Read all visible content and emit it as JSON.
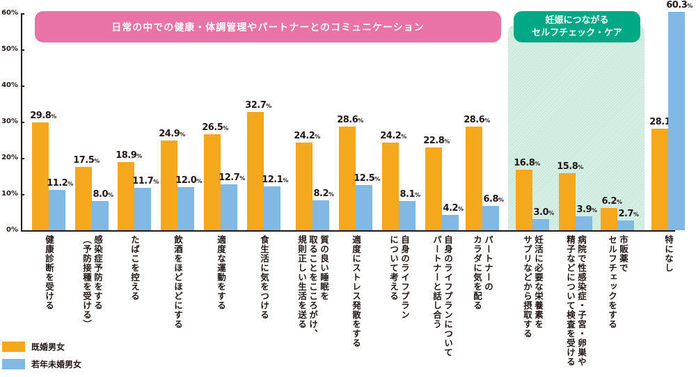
{
  "chart_data": {
    "type": "bar",
    "title": "",
    "xlabel": "",
    "ylabel": "",
    "ylim": [
      0,
      60
    ],
    "yticks": [
      "0%",
      "10%",
      "20%",
      "30%",
      "40%",
      "50%",
      "60%"
    ],
    "grid": false,
    "legend_position": "bottom-left",
    "categories": [
      "健康診断を受ける",
      "感染症予防をする（予防接種を受ける）",
      "たばこを控える",
      "飲酒をほどほどにする",
      "適度な運動をする",
      "食生活に気をつける",
      "質の良い睡眠を取ることをこころがけ、規則正しい生活を送る",
      "適度にストレス発散をする",
      "自身のライフプランについて考える",
      "自身のライフプランについてパートナーと話し合う",
      "パートナーのカラダに気を配る",
      "妊活に必要な栄養素をサプリなどから摂取する",
      "病院で性感染症・子宮・卵巣や精子などについて検査を受ける",
      "市販薬でセルフチェックをする",
      "特になし"
    ],
    "series": [
      {
        "name": "既婚男女",
        "color": "#f5a81c",
        "values": [
          29.8,
          17.5,
          18.9,
          24.9,
          26.5,
          32.7,
          24.2,
          28.6,
          24.2,
          22.8,
          28.6,
          16.8,
          15.8,
          6.2,
          28.1
        ]
      },
      {
        "name": "若年未婚男女",
        "color": "#82b8e4",
        "values": [
          11.2,
          8.0,
          11.7,
          12.0,
          12.7,
          12.1,
          8.2,
          12.5,
          8.1,
          4.2,
          6.8,
          3.0,
          3.9,
          2.7,
          60.3
        ]
      }
    ],
    "annotations": [
      {
        "text": "日常の中での健康・体調管理やパートナーとのコミュニケーション",
        "spans_categories": [
          0,
          10
        ],
        "color": "#e973a7"
      },
      {
        "text": "妊娠につながるセルフチェック・ケア",
        "spans_categories": [
          11,
          13
        ],
        "color": "#00a886"
      }
    ]
  },
  "bands": {
    "daily": "日常の中での健康・体調管理やパートナーとのコミュニケーション",
    "pregnancy_line1": "妊娠につながる",
    "pregnancy_line2": "セルフチェック・ケア"
  },
  "labels": [
    [
      "健康診断を受ける"
    ],
    [
      "感染症予防をする",
      "（予防接種を受ける）"
    ],
    [
      "たばこを控える"
    ],
    [
      "飲酒をほどほどにする"
    ],
    [
      "適度な運動をする"
    ],
    [
      "食生活に気をつける"
    ],
    [
      "質の良い睡眠を",
      "取ることをこころがけ、",
      "規則正しい生活を送る"
    ],
    [
      "適度にストレス発散をする"
    ],
    [
      "自身のライフプラン",
      "について考える"
    ],
    [
      "自身のライフプランについて",
      "パートナーと話し合う"
    ],
    [
      "パートナーの",
      "カラダに気を配る"
    ],
    [
      "妊活に必要な栄養素を",
      "サプリなどから摂取する"
    ],
    [
      "病院で性感染症・子宮・卵巣や",
      "精子などについて検査を受ける"
    ],
    [
      "市販薬で",
      "セルフチェックをする"
    ],
    [
      "特になし"
    ]
  ],
  "legend": {
    "married": "既婚男女",
    "single": "若年未婚男女"
  },
  "pct_suffix": "%"
}
